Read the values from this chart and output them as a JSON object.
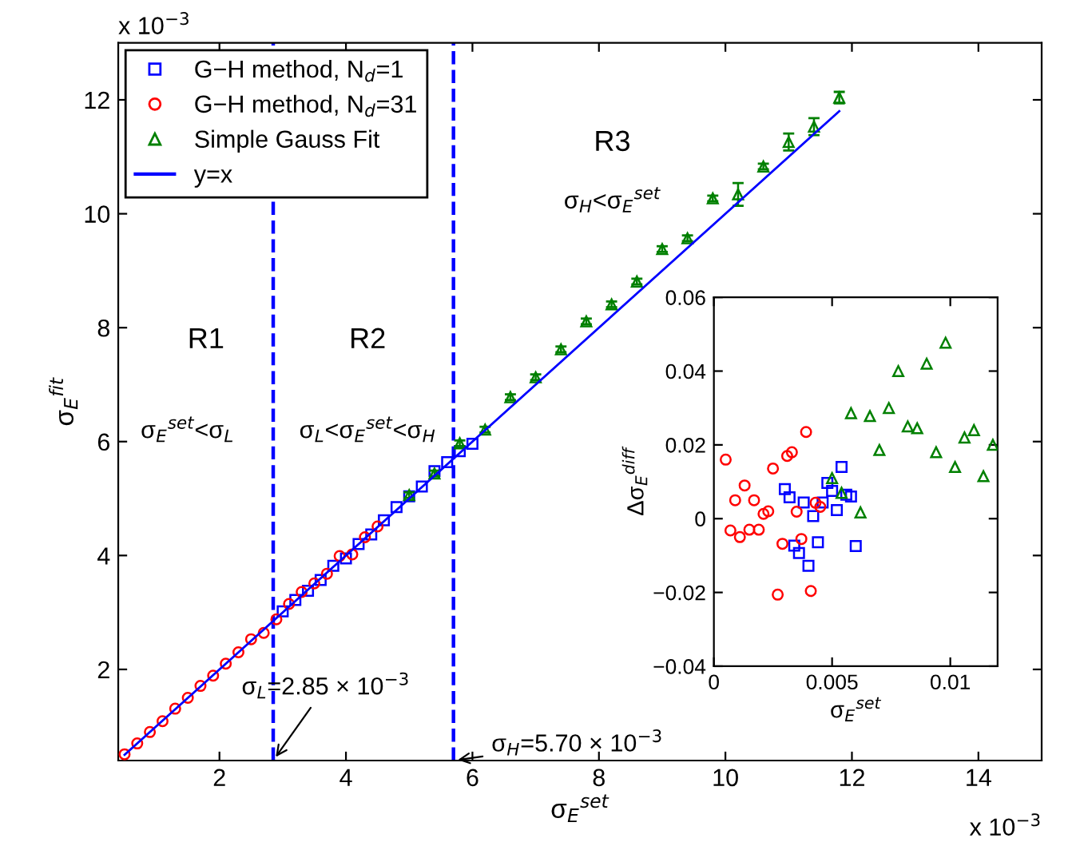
{
  "chart_data": [
    {
      "type": "scatter",
      "xlabel": "σ$_{E}$$^{set}$",
      "ylabel": "σ$_{E}$$^{fit}$",
      "xlim": [
        0.4,
        15
      ],
      "ylim": [
        0.4,
        13
      ],
      "xticks": [
        2,
        4,
        6,
        8,
        10,
        12,
        14
      ],
      "yticks": [
        2,
        4,
        6,
        8,
        10,
        12
      ],
      "grid": false,
      "legend": "top left",
      "annotations": [
        "x 10$^{−3}$",
        "x 10$^{−3}$",
        "R1",
        "σ$_{E}$$^{set}$<σ$_{L}$",
        "R2",
        "σ$_{L}$<σ$_{E}$$^{set}$<σ$_{H}$",
        "R3",
        "σ$_{H}$<σ$_{E}$$^{set}$"
      ],
      "ref_lines": [
        {
          "axis": "x",
          "value": 2.85,
          "label": "σ$_{L}$=2.85 × 10$^{−3}$",
          "color": "#0000ff",
          "line_style": "dashed"
        },
        {
          "axis": "x",
          "value": 5.7,
          "label": "σ$_{H}$=5.70 × 10$^{−3}$",
          "color": "#0000ff",
          "line_style": "dashed"
        }
      ],
      "series": [
        {
          "name": "G−H method, N$_{d}$=1",
          "marker": "square",
          "color": "#0000ff",
          "x": [
            3.0,
            3.2,
            3.4,
            3.6,
            3.8,
            4.0,
            4.2,
            4.4,
            4.6,
            4.8,
            5.0,
            5.2,
            5.4,
            5.6,
            5.8,
            6.0
          ],
          "values": [
            3.02,
            3.22,
            3.38,
            3.57,
            3.82,
            3.95,
            4.2,
            4.37,
            4.62,
            4.85,
            5.04,
            5.21,
            5.48,
            5.64,
            5.83,
            5.96
          ]
        },
        {
          "name": "G−H method, N$_{d}$=31",
          "marker": "circle",
          "color": "#ff0000",
          "x": [
            0.5,
            0.7,
            0.9,
            1.1,
            1.3,
            1.5,
            1.7,
            1.9,
            2.1,
            2.3,
            2.5,
            2.7,
            2.9,
            3.1,
            3.3,
            3.5,
            3.7,
            3.9,
            4.1,
            4.3,
            4.5
          ],
          "values": [
            0.51,
            0.7,
            0.9,
            1.09,
            1.31,
            1.5,
            1.71,
            1.89,
            2.1,
            2.3,
            2.53,
            2.64,
            2.88,
            3.15,
            3.36,
            3.51,
            3.68,
            3.99,
            4.02,
            4.32,
            4.51
          ]
        },
        {
          "name": "Simple Gauss Fit",
          "marker": "triangle",
          "color": "#008000",
          "x": [
            5.0,
            5.4,
            5.8,
            6.2,
            6.6,
            7.0,
            7.4,
            7.8,
            8.2,
            8.6,
            9.0,
            9.4,
            9.8,
            10.2,
            10.6,
            11.0,
            11.4,
            11.8
          ],
          "values": [
            5.06,
            5.44,
            5.97,
            6.21,
            6.78,
            7.13,
            7.62,
            8.11,
            8.41,
            8.81,
            9.38,
            9.57,
            10.27,
            10.34,
            10.83,
            11.26,
            11.53,
            12.04
          ],
          "errors": [
            0.05,
            0.05,
            0.05,
            0.05,
            0.05,
            0.05,
            0.05,
            0.05,
            0.05,
            0.05,
            0.05,
            0.05,
            0.05,
            0.2,
            0.05,
            0.15,
            0.15,
            0.1
          ]
        },
        {
          "name": "y=x",
          "type": "line",
          "marker": "none",
          "line_style": "solid",
          "color": "#0000ff",
          "x": [
            0.5,
            11.8
          ],
          "values": [
            0.5,
            11.8
          ]
        }
      ]
    },
    {
      "type": "scatter",
      "xlabel": "σ$_{E}$$^{set}$",
      "ylabel": "Δσ$_{E}$$^{diff}$",
      "xlim": [
        0,
        0.012
      ],
      "ylim": [
        -0.04,
        0.06
      ],
      "xticks": [
        0,
        0.005,
        0.01
      ],
      "yticks": [
        {
          "value": -0.04,
          "label": "−0.04"
        },
        {
          "value": -0.02,
          "label": "−0.02"
        },
        0,
        0.02,
        0.04,
        0.06
      ],
      "grid": false,
      "series": [
        {
          "marker": "square",
          "color": "#0000ff",
          "x": [
            0.003,
            0.0032,
            0.0034,
            0.0036,
            0.0038,
            0.004,
            0.0042,
            0.0044,
            0.0046,
            0.0048,
            0.005,
            0.0052,
            0.0054,
            0.0056,
            0.0058,
            0.006
          ],
          "values": [
            0.008,
            0.0058,
            -0.0073,
            -0.0093,
            0.0044,
            -0.0128,
            0.0007,
            -0.0064,
            0.0044,
            0.0097,
            0.0075,
            0.0023,
            0.014,
            0.0065,
            0.006,
            -0.0074
          ]
        },
        {
          "marker": "circle",
          "color": "#ff0000",
          "x": [
            0.0005,
            0.0007,
            0.0009,
            0.0011,
            0.0013,
            0.0015,
            0.0017,
            0.0019,
            0.0021,
            0.0023,
            0.0025,
            0.0027,
            0.0029,
            0.0031,
            0.0033,
            0.0035,
            0.0037,
            0.0039,
            0.0041,
            0.0043,
            0.0045
          ],
          "values": [
            0.016,
            -0.0032,
            0.005,
            -0.005,
            0.009,
            -0.003,
            0.005,
            -0.003,
            0.0013,
            0.002,
            0.0136,
            -0.0206,
            -0.0068,
            0.017,
            0.018,
            0.0019,
            -0.0055,
            0.0235,
            -0.0196,
            0.0043,
            0.0032
          ]
        },
        {
          "marker": "triangle",
          "color": "#008000",
          "x": [
            0.005,
            0.0054,
            0.0058,
            0.0062,
            0.0066,
            0.007,
            0.0074,
            0.0078,
            0.0082,
            0.0086,
            0.009,
            0.0094,
            0.0098,
            0.0102,
            0.0106,
            0.011,
            0.0114,
            0.0118
          ],
          "values": [
            0.011,
            0.007,
            0.0286,
            0.0017,
            0.0278,
            0.0186,
            0.03,
            0.04,
            0.025,
            0.0245,
            0.042,
            0.018,
            0.0477,
            0.014,
            0.022,
            0.024,
            0.0115,
            0.02
          ]
        }
      ]
    }
  ]
}
